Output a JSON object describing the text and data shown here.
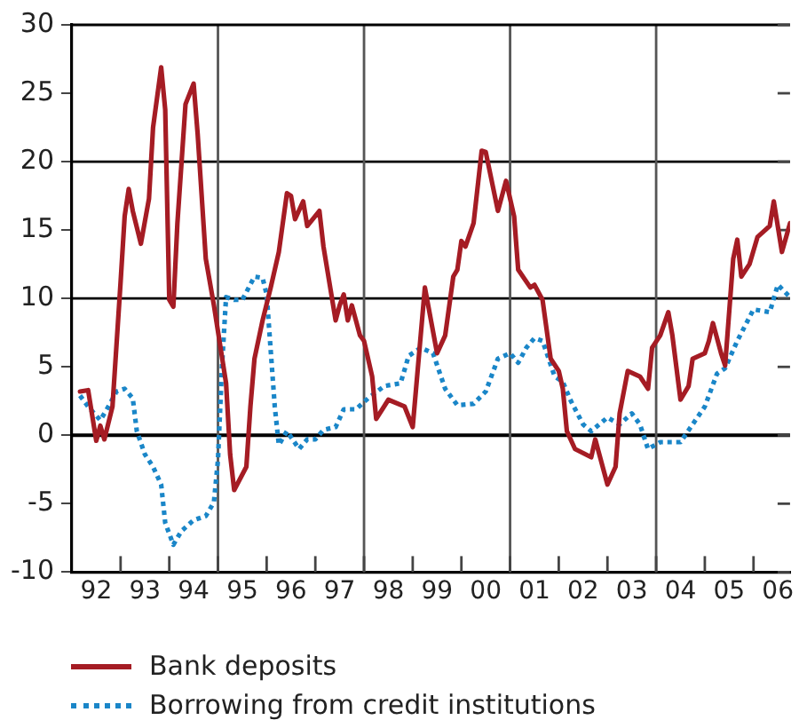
{
  "chart_data": {
    "type": "line",
    "xlim": [
      "1992-01",
      "2006-10"
    ],
    "xticks": [
      {
        "value": "1992-07",
        "label": "92"
      },
      {
        "value": "1993",
        "label": null
      },
      {
        "value": "1993-07",
        "label": "93"
      },
      {
        "value": "1994",
        "label": null
      },
      {
        "value": "1994-07",
        "label": "94"
      },
      {
        "value": "1995",
        "label": null
      },
      {
        "value": "1995-07",
        "label": "95"
      },
      {
        "value": "1996",
        "label": null
      },
      {
        "value": "1996-07",
        "label": "96"
      },
      {
        "value": "1997",
        "label": null
      },
      {
        "value": "1997-07",
        "label": "97"
      },
      {
        "value": "1998",
        "label": null
      },
      {
        "value": "1998-07",
        "label": "98"
      },
      {
        "value": "1999",
        "label": null
      },
      {
        "value": "1999-07",
        "label": "99"
      },
      {
        "value": "2000",
        "label": null
      },
      {
        "value": "2000-07",
        "label": "00"
      },
      {
        "value": "2001",
        "label": null
      },
      {
        "value": "2001-07",
        "label": "01"
      },
      {
        "value": "2002",
        "label": null
      },
      {
        "value": "2002-07",
        "label": "02"
      },
      {
        "value": "2003",
        "label": null
      },
      {
        "value": "2003-07",
        "label": "03"
      },
      {
        "value": "2004",
        "label": null
      },
      {
        "value": "2004-07",
        "label": "04"
      },
      {
        "value": "2005",
        "label": null
      },
      {
        "value": "2005-07",
        "label": "05"
      },
      {
        "value": "2006",
        "label": null
      },
      {
        "value": "2006-07",
        "label": "06"
      }
    ],
    "ylim": [
      -10,
      30
    ],
    "yticks": [
      -10,
      -5,
      0,
      5,
      10,
      15,
      20,
      25,
      30
    ],
    "grid": false,
    "legend": "bottom",
    "ref_lines": [
      {
        "axis": "y",
        "value": 0,
        "color": "#000000"
      },
      {
        "axis": "y",
        "value": 10,
        "color": "#000000"
      },
      {
        "axis": "y",
        "value": 20,
        "color": "#000000"
      },
      {
        "axis": "x",
        "value": "1995",
        "color": "#555555"
      },
      {
        "axis": "x",
        "value": "1998",
        "color": "#555555"
      },
      {
        "axis": "x",
        "value": "2001",
        "color": "#555555"
      },
      {
        "axis": "x",
        "value": "2004",
        "color": "#555555"
      }
    ],
    "series": [
      {
        "name": "Bank deposits",
        "color": "#a51c24",
        "line_style": "solid",
        "x": [
          "1992-03",
          "1992-05",
          "1992-07",
          "1992-08",
          "1992-09",
          "1992-11",
          "1993-01",
          "1993-02",
          "1993-03",
          "1993-04",
          "1993-06",
          "1993-08",
          "1993-09",
          "1993-11",
          "1993-12",
          "1994-01",
          "1994-02",
          "1994-03",
          "1994-05",
          "1994-07",
          "1994-08",
          "1994-10",
          "1994-12",
          "1995-03",
          "1995-04",
          "1995-05",
          "1995-08",
          "1995-09",
          "1995-10",
          "1995-12",
          "1996-02",
          "1996-04",
          "1996-06",
          "1996-07",
          "1996-08",
          "1996-10",
          "1996-11",
          "1997-02",
          "1997-03",
          "1997-06",
          "1997-07",
          "1997-08",
          "1997-09",
          "1997-10",
          "1997-12",
          "1998-01",
          "1998-03",
          "1998-04",
          "1998-07",
          "1998-11",
          "1999-01",
          "1999-04",
          "1999-07",
          "1999-09",
          "1999-11",
          "1999-12",
          "2000-01",
          "2000-02",
          "2000-04",
          "2000-06",
          "2000-07",
          "2000-10",
          "2000-12",
          "2001-02",
          "2001-03",
          "2001-06",
          "2001-07",
          "2001-09",
          "2001-11",
          "2002-01",
          "2002-02",
          "2002-03",
          "2002-05",
          "2002-09",
          "2002-10",
          "2003-01",
          "2003-03",
          "2003-04",
          "2003-06",
          "2003-09",
          "2003-11",
          "2003-12",
          "2004-02",
          "2004-04",
          "2004-05",
          "2004-07",
          "2004-09",
          "2004-10",
          "2005-01",
          "2005-02",
          "2005-03",
          "2005-05",
          "2005-06",
          "2005-08",
          "2005-09",
          "2005-10",
          "2005-12",
          "2006-02",
          "2006-05",
          "2006-06",
          "2006-08",
          "2006-10"
        ],
        "values": [
          3.2,
          3.3,
          -0.4,
          0.7,
          -0.3,
          2.1,
          11.2,
          16,
          18,
          16.4,
          14,
          17.3,
          22.5,
          26.9,
          23.8,
          9.9,
          9.4,
          15.5,
          24.2,
          25.7,
          22,
          12.9,
          9.5,
          3.8,
          -1.4,
          -4,
          -2.3,
          2.1,
          5.6,
          8.4,
          10.8,
          13.4,
          17.7,
          17.5,
          15.8,
          17.1,
          15.3,
          16.4,
          13.8,
          8.4,
          9.5,
          10.3,
          8.4,
          9.5,
          7.3,
          6.9,
          4.3,
          1.2,
          2.6,
          2.1,
          0.6,
          10.8,
          6.0,
          7.3,
          11.6,
          12.1,
          14.2,
          13.8,
          15.5,
          20.8,
          20.7,
          16.4,
          18.6,
          16,
          12.1,
          10.8,
          11,
          9.9,
          5.6,
          4.7,
          3.4,
          0.3,
          -1.0,
          -1.6,
          -0.3,
          -3.6,
          -2.3,
          1.6,
          4.7,
          4.3,
          3.4,
          6.4,
          7.3,
          9.0,
          7.3,
          2.6,
          3.6,
          5.6,
          6.0,
          6.9,
          8.2,
          6.0,
          5.1,
          12.9,
          14.3,
          11.6,
          12.5,
          14.5,
          15.3,
          17.1,
          13.4,
          15.5
        ]
      },
      {
        "name": "Borrowing from credit institutions",
        "color": "#1a86c8",
        "line_style": "dotted",
        "x": [
          "1992-03",
          "1992-05",
          "1992-08",
          "1992-10",
          "1992-12",
          "1993-02",
          "1993-04",
          "1993-05",
          "1993-07",
          "1993-09",
          "1993-11",
          "1993-12",
          "1994-02",
          "1994-04",
          "1994-07",
          "1994-10",
          "1994-12",
          "1995-01",
          "1995-02",
          "1995-03",
          "1995-05",
          "1995-07",
          "1995-10",
          "1995-12",
          "1996-01",
          "1996-03",
          "1996-04",
          "1996-06",
          "1996-09",
          "1996-11",
          "1997-01",
          "1997-03",
          "1997-06",
          "1997-08",
          "1997-11",
          "1998-02",
          "1998-06",
          "1998-10",
          "1998-12",
          "1999-03",
          "1999-06",
          "1999-09",
          "1999-12",
          "2000-04",
          "2000-07",
          "2000-10",
          "2001-01",
          "2001-03",
          "2001-05",
          "2001-07",
          "2001-09",
          "2001-12",
          "2002-02",
          "2002-04",
          "2002-07",
          "2002-09",
          "2003-01",
          "2003-04",
          "2003-07",
          "2003-09",
          "2003-11",
          "2004-02",
          "2004-07",
          "2004-10",
          "2005-01",
          "2005-04",
          "2005-06",
          "2005-09",
          "2006-01",
          "2006-05",
          "2006-07",
          "2006-10"
        ],
        "values": [
          2.9,
          2.1,
          1.1,
          2.1,
          3.2,
          3.4,
          2.7,
          0.3,
          -1.4,
          -2.3,
          -3.6,
          -6.4,
          -8,
          -7,
          -6.2,
          -5.9,
          -4.9,
          -1.8,
          5.1,
          10.1,
          9.9,
          9.9,
          11.6,
          11.5,
          10.3,
          2.1,
          -0.7,
          0.3,
          -1.0,
          -0.3,
          -0.3,
          0.4,
          0.6,
          1.9,
          1.9,
          2.7,
          3.6,
          3.8,
          5.8,
          6.4,
          6.0,
          3.4,
          2.2,
          2.3,
          3.2,
          5.6,
          6.0,
          5.3,
          6.4,
          7.1,
          6.9,
          4.3,
          3.9,
          2.5,
          0.8,
          0.3,
          1.3,
          0.8,
          1.6,
          0.8,
          -1.0,
          -0.5,
          -0.5,
          0.8,
          2.1,
          4.5,
          4.9,
          6.9,
          9.2,
          9.0,
          11.0,
          10.1
        ]
      }
    ]
  }
}
